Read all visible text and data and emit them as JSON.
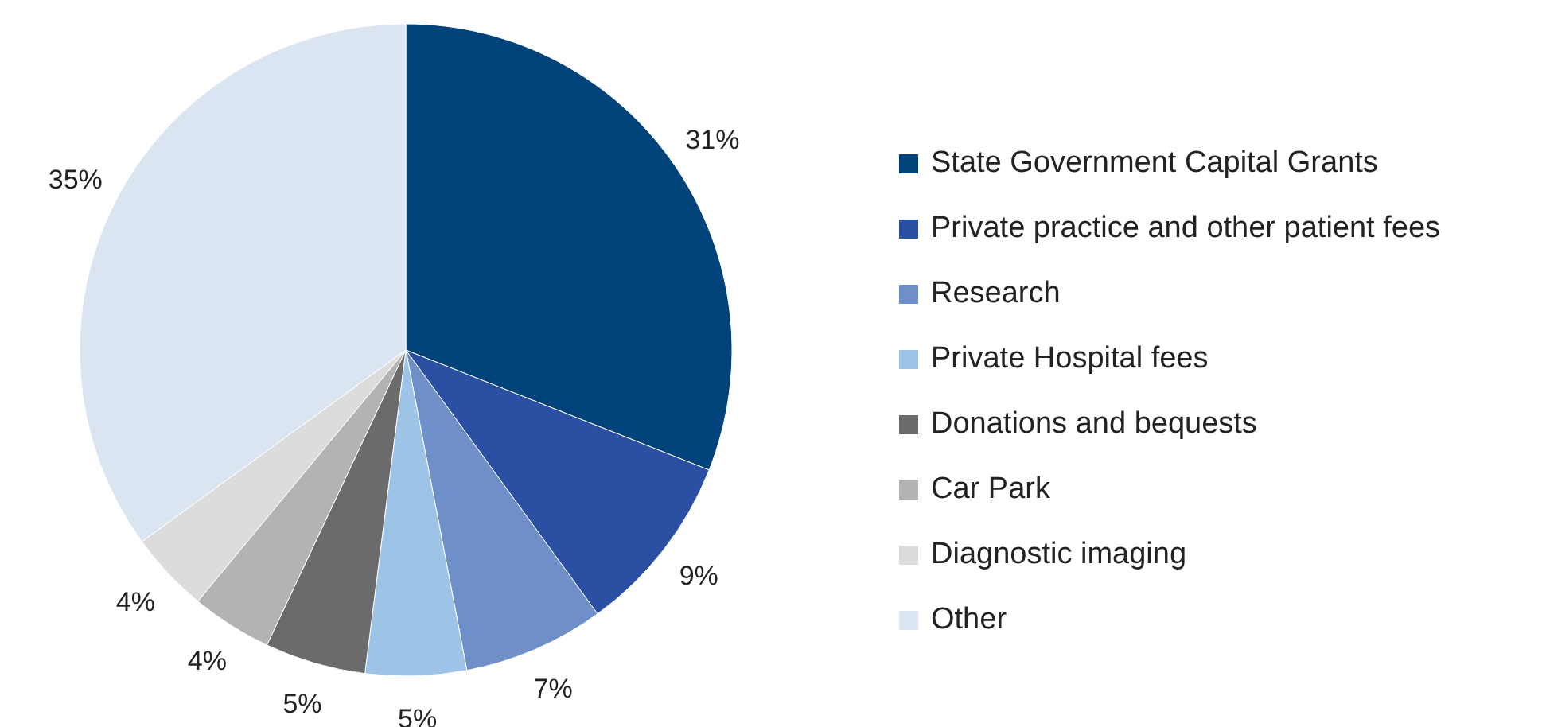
{
  "chart_data": {
    "type": "pie",
    "categories": [
      "State Government Capital Grants",
      "Private practice and other patient fees",
      "Research",
      "Private Hospital fees",
      "Donations and bequests",
      "Car Park",
      "Diagnostic imaging",
      "Other"
    ],
    "values": [
      31,
      9,
      7,
      5,
      5,
      4,
      4,
      35
    ],
    "colors": [
      "#00427a",
      "#2a4fa3",
      "#6f8fc9",
      "#9dc3e6",
      "#6b6b6b",
      "#b3b3b3",
      "#dcdcdc",
      "#dbe5f1"
    ],
    "value_labels": [
      "31%",
      "9%",
      "7%",
      "5%",
      "5%",
      "4%",
      "4%",
      "35%"
    ],
    "legend": "right"
  }
}
